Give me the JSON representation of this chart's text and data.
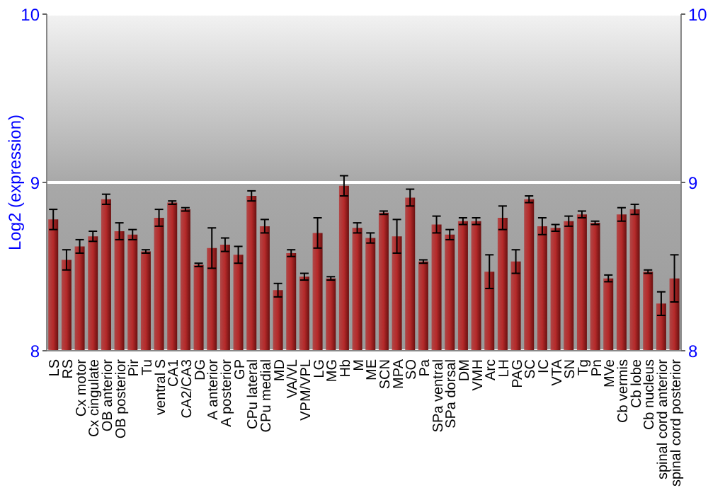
{
  "chart_data": {
    "type": "bar",
    "ylabel": "Log2 (expression)",
    "categories": [
      "LS",
      "RS",
      "Cx motor",
      "Cx cingulate",
      "OB anterior",
      "OB posterior",
      "Pir",
      "Tu",
      "ventral S",
      "CA1",
      "CA2/CA3",
      "DG",
      "A anterior",
      "A posterior",
      "GP",
      "CPu lateral",
      "CPu medial",
      "MD",
      "VA/VL",
      "VPM/VPL",
      "LG",
      "MG",
      "Hb",
      "M",
      "ME",
      "SCN",
      "MPA",
      "SO",
      "Pa",
      "SPa ventral",
      "SPa dorsal",
      "DM",
      "VMH",
      "Arc",
      "LH",
      "PAG",
      "SC",
      "IC",
      "VTA",
      "SN",
      "Tg",
      "Pn",
      "MVe",
      "Cb vermis",
      "Cb lobe",
      "Cb nucleus",
      "spinal cord anterior",
      "spinal cord posterior"
    ],
    "values": [
      8.78,
      8.54,
      8.62,
      8.68,
      8.9,
      8.71,
      8.69,
      8.59,
      8.79,
      8.88,
      8.84,
      8.51,
      8.61,
      8.63,
      8.57,
      8.92,
      8.74,
      8.36,
      8.58,
      8.44,
      8.7,
      8.43,
      8.98,
      8.73,
      8.67,
      8.82,
      8.68,
      8.91,
      8.53,
      8.75,
      8.69,
      8.77,
      8.77,
      8.47,
      8.79,
      8.53,
      8.9,
      8.74,
      8.73,
      8.77,
      8.81,
      8.76,
      8.43,
      8.81,
      8.84,
      8.47,
      8.28,
      8.43
    ],
    "errors": [
      0.06,
      0.06,
      0.04,
      0.03,
      0.03,
      0.05,
      0.03,
      0.01,
      0.05,
      0.01,
      0.01,
      0.01,
      0.12,
      0.04,
      0.05,
      0.03,
      0.04,
      0.04,
      0.02,
      0.02,
      0.09,
      0.01,
      0.06,
      0.03,
      0.03,
      0.01,
      0.1,
      0.05,
      0.01,
      0.05,
      0.03,
      0.02,
      0.02,
      0.1,
      0.07,
      0.07,
      0.02,
      0.05,
      0.02,
      0.03,
      0.02,
      0.01,
      0.02,
      0.04,
      0.03,
      0.01,
      0.07,
      0.14
    ],
    "color": "#b52a2a",
    "ylim": [
      8,
      10
    ],
    "yticks": [
      8,
      9,
      10
    ],
    "y2lim": [
      8,
      10
    ],
    "y2ticks": [
      8,
      9,
      10
    ],
    "grid": "y"
  }
}
